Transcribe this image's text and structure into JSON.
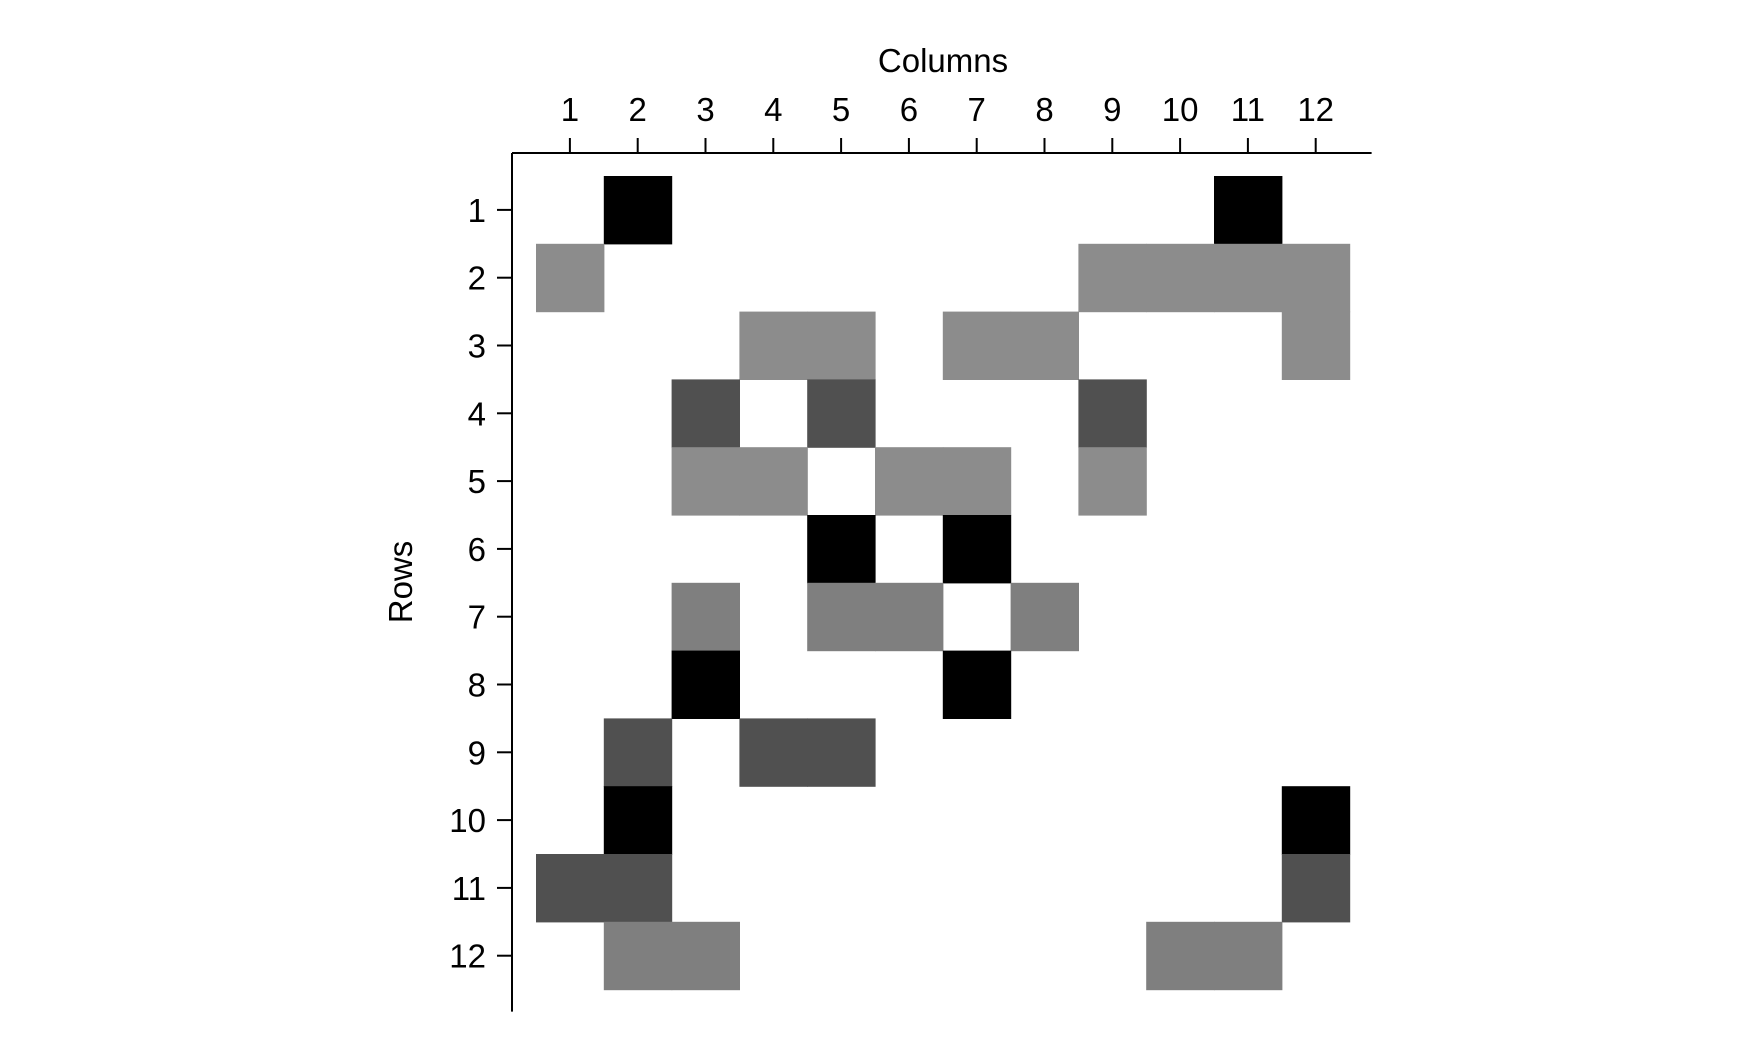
{
  "chart_data": {
    "type": "heatmap",
    "title": "",
    "xlabel": "Columns",
    "ylabel": "Rows",
    "x_axis_position": "top",
    "y_axis_position": "left",
    "grid": false,
    "legend": "none",
    "columns": [
      "1",
      "2",
      "3",
      "4",
      "5",
      "6",
      "7",
      "8",
      "9",
      "10",
      "11",
      "12"
    ],
    "rows": [
      "1",
      "2",
      "3",
      "4",
      "5",
      "6",
      "7",
      "8",
      "9",
      "10",
      "11",
      "12"
    ],
    "level_colors": {
      "0": "#ffffff",
      "1": "#8c8c8c",
      "2": "#7f7f7f",
      "3": "#505050",
      "4": "#000000"
    },
    "values": [
      [
        0,
        4,
        0,
        0,
        0,
        0,
        0,
        0,
        0,
        0,
        4,
        0
      ],
      [
        1,
        0,
        0,
        0,
        0,
        0,
        0,
        0,
        1,
        1,
        1,
        1
      ],
      [
        0,
        0,
        0,
        1,
        1,
        0,
        1,
        1,
        0,
        0,
        0,
        1
      ],
      [
        0,
        0,
        3,
        0,
        3,
        0,
        0,
        0,
        3,
        0,
        0,
        0
      ],
      [
        0,
        0,
        1,
        1,
        0,
        1,
        1,
        0,
        1,
        0,
        0,
        0
      ],
      [
        0,
        0,
        0,
        0,
        4,
        0,
        4,
        0,
        0,
        0,
        0,
        0
      ],
      [
        0,
        0,
        2,
        0,
        2,
        2,
        0,
        2,
        0,
        0,
        0,
        0
      ],
      [
        0,
        0,
        4,
        0,
        0,
        0,
        4,
        0,
        0,
        0,
        0,
        0
      ],
      [
        0,
        3,
        0,
        3,
        3,
        0,
        0,
        0,
        0,
        0,
        0,
        0
      ],
      [
        0,
        4,
        0,
        0,
        0,
        0,
        0,
        0,
        0,
        0,
        0,
        4
      ],
      [
        3,
        3,
        0,
        0,
        0,
        0,
        0,
        0,
        0,
        0,
        0,
        3
      ],
      [
        0,
        2,
        2,
        0,
        0,
        0,
        0,
        0,
        0,
        2,
        2,
        0
      ]
    ]
  }
}
